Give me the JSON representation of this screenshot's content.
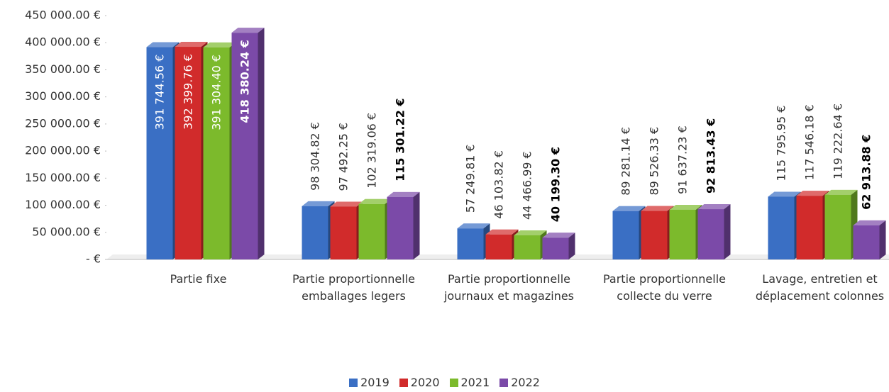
{
  "chart_data": {
    "type": "bar3d",
    "categories": [
      "Partie fixe",
      "Partie proportionnelle emballages legers",
      "Partie proportionnelle journaux et magazines",
      "Partie proportionnelle collecte du verre",
      "Lavage, entretien et déplacement colonnes"
    ],
    "series": [
      {
        "name": "2019",
        "color": "#3a6fc4",
        "values": [
          391744.56,
          98304.82,
          57249.81,
          89281.14,
          115795.95
        ],
        "value_labels": [
          "391 744.56 €",
          "98 304.82 €",
          "57 249.81 €",
          "89 281.14 €",
          "115 795.95 €"
        ]
      },
      {
        "name": "2020",
        "color": "#d12b2b",
        "values": [
          392399.76,
          97492.25,
          46103.82,
          89526.33,
          117546.18
        ],
        "value_labels": [
          "392 399.76 €",
          "97 492.25 €",
          "46 103.82 €",
          "89 526.33 €",
          "117 546.18 €"
        ]
      },
      {
        "name": "2021",
        "color": "#7cba2c",
        "values": [
          391304.4,
          102319.06,
          44466.99,
          91637.23,
          119222.64
        ],
        "value_labels": [
          "391 304.40 €",
          "102 319.06 €",
          "44 466.99 €",
          "91 637.23 €",
          "119 222.64 €"
        ]
      },
      {
        "name": "2022",
        "color": "#7b4aa8",
        "values": [
          418380.24,
          115301.22,
          40199.3,
          92813.43,
          62913.88
        ],
        "value_labels": [
          "418 380.24 €",
          "115 301.22 €",
          "40 199.30 €",
          "92 813.43 €",
          "62 913.88 €"
        ]
      }
    ],
    "ylim": [
      0,
      450000
    ],
    "yticks": [
      {
        "value": 0,
        "label": "-  €"
      },
      {
        "value": 50000,
        "label": "50 000.00 €"
      },
      {
        "value": 100000,
        "label": "100 000.00 €"
      },
      {
        "value": 150000,
        "label": "150 000.00 €"
      },
      {
        "value": 200000,
        "label": "200 000.00 €"
      },
      {
        "value": 250000,
        "label": "250 000.00 €"
      },
      {
        "value": 300000,
        "label": "300 000.00 €"
      },
      {
        "value": 350000,
        "label": "350 000.00 €"
      },
      {
        "value": 400000,
        "label": "400 000.00 €"
      },
      {
        "value": 450000,
        "label": "450 000.00 €"
      }
    ],
    "legend": "bottom"
  }
}
